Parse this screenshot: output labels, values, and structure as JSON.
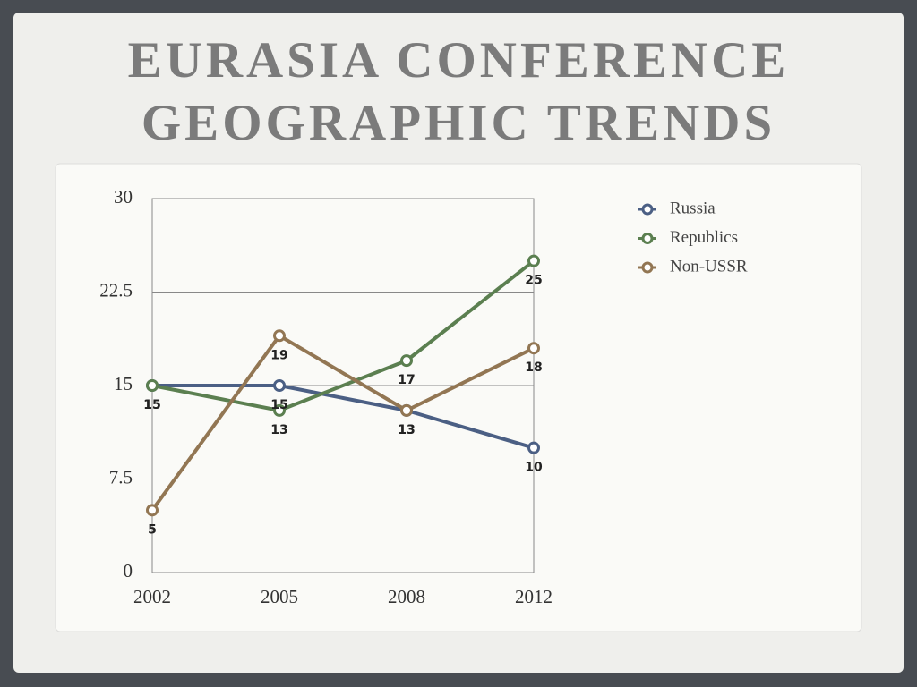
{
  "chart_data": {
    "type": "line",
    "title": [
      "EURASIA CONFERENCE",
      "GEOGRAPHIC TRENDS"
    ],
    "categories": [
      "2002",
      "2005",
      "2008",
      "2012"
    ],
    "series": [
      {
        "name": "Russia",
        "color": "#4b5f84",
        "values": [
          15,
          15,
          13,
          10
        ]
      },
      {
        "name": "Republics",
        "color": "#5b7f50",
        "values": [
          15,
          13,
          17,
          25
        ]
      },
      {
        "name": "Non-USSR",
        "color": "#927653",
        "values": [
          5,
          19,
          13,
          18
        ]
      }
    ],
    "ylim": [
      0,
      30
    ],
    "yticks": [
      0,
      7.5,
      15,
      22.5,
      30
    ],
    "grid": true,
    "legend": "right"
  }
}
